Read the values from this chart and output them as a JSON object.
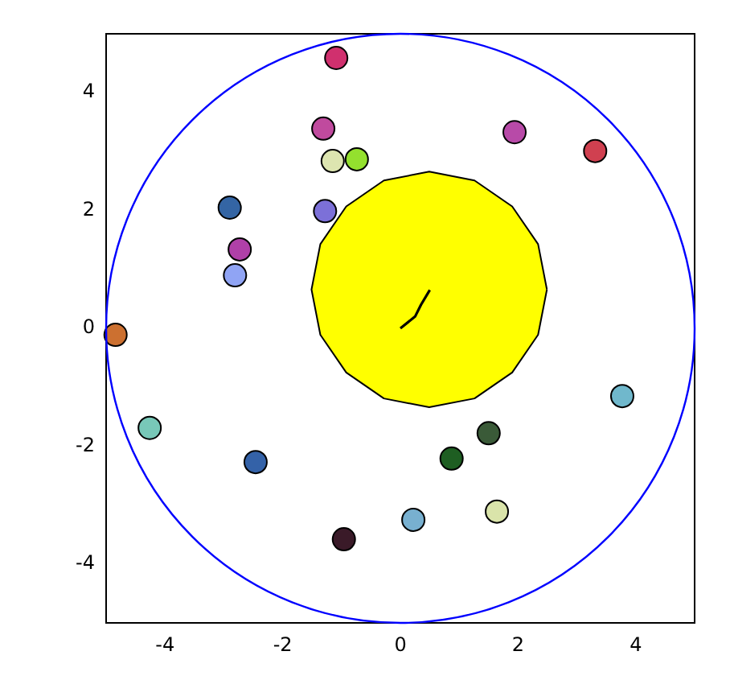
{
  "chart_data": {
    "type": "scatter",
    "xlim": [
      -5,
      5
    ],
    "ylim": [
      -5,
      5
    ],
    "xticks": [
      -4,
      -2,
      0,
      2,
      4
    ],
    "yticks": [
      -4,
      -2,
      0,
      2,
      4
    ],
    "grid": false,
    "legend": false,
    "series": [
      {
        "type": "area",
        "color": "#ffff00",
        "marker": "none",
        "x": [
          2.49,
          2.34,
          1.9,
          1.26,
          0.49,
          -0.28,
          -0.92,
          -1.36,
          -1.51,
          -1.36,
          -0.92,
          -0.28,
          0.49,
          1.26,
          1.9,
          2.34,
          2.49
        ],
        "values": [
          0.66,
          1.43,
          2.07,
          2.51,
          2.66,
          2.51,
          2.07,
          1.43,
          0.66,
          -0.11,
          -0.75,
          -1.19,
          -1.34,
          -1.19,
          -0.75,
          -0.11,
          0.66
        ]
      },
      {
        "type": "line",
        "color": "#000000",
        "marker": "none",
        "x": [
          0,
          0.25,
          0.35,
          0.5
        ],
        "values": [
          0,
          0.2,
          0.4,
          0.65
        ]
      },
      {
        "type": "scatter",
        "marker": "circle",
        "x": [
          -1.09,
          -1.31,
          -1.15,
          -0.74,
          1.94,
          3.31,
          -2.9,
          -1.28,
          -2.73,
          -2.81,
          -4.84,
          -4.26,
          -2.46,
          -0.96,
          0.22,
          0.87,
          1.5,
          1.64,
          3.77
        ],
        "values": [
          4.59,
          3.39,
          2.84,
          2.87,
          3.33,
          3.01,
          2.05,
          1.99,
          1.34,
          0.9,
          -0.11,
          -1.69,
          -2.27,
          -3.58,
          -3.25,
          -2.21,
          -1.78,
          -3.11,
          -1.15
        ],
        "colors": [
          "#d0306e",
          "#c04a9e",
          "#dde5b0",
          "#94e02e",
          "#b84aa8",
          "#d04050",
          "#3465a4",
          "#7c70d8",
          "#b040a8",
          "#90a4f4",
          "#cc7030",
          "#78c8b8",
          "#3462a8",
          "#3a1a28",
          "#78b0d0",
          "#1e5e22",
          "#3a5a38",
          "#dae4aa",
          "#70b8cc"
        ]
      }
    ]
  }
}
